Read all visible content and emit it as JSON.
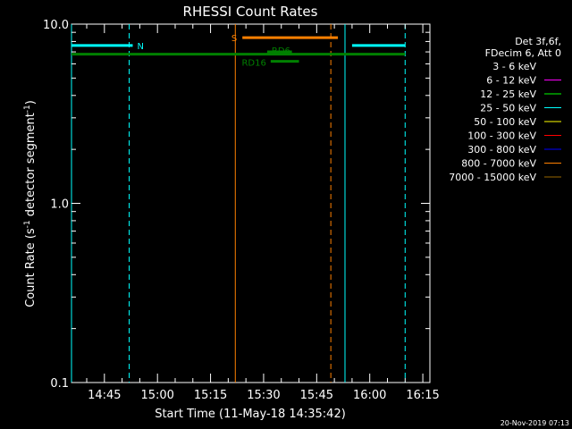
{
  "chart_data": {
    "type": "line",
    "title": "RHESSI Count Rates",
    "xlabel": "Start Time (11-May-18 14:35:42)",
    "ylabel_parts": [
      "Count Rate (s",
      "-1",
      " detector segment",
      "-1",
      ")"
    ],
    "y_scale": "log",
    "ylim": [
      0.1,
      10.0
    ],
    "yticks": [
      {
        "v": 0.1,
        "label": "0.1"
      },
      {
        "v": 1.0,
        "label": "1.0"
      },
      {
        "v": 10.0,
        "label": "10.0"
      }
    ],
    "xlim": [
      "14:35:42",
      "16:17:00"
    ],
    "xticks": [
      {
        "t": "14:45",
        "label": "14:45"
      },
      {
        "t": "15:00",
        "label": "15:00"
      },
      {
        "t": "15:15",
        "label": "15:15"
      },
      {
        "t": "15:30",
        "label": "15:30"
      },
      {
        "t": "15:45",
        "label": "15:45"
      },
      {
        "t": "16:00",
        "label": "16:00"
      },
      {
        "t": "16:15",
        "label": "16:15"
      }
    ],
    "legend_header": [
      "Det 3f,6f,",
      "FDecim 6, Att 0"
    ],
    "legend": [
      {
        "label": "3 - 6 keV",
        "color": "#000000"
      },
      {
        "label": "6 - 12 keV",
        "color": "#ff00ff"
      },
      {
        "label": "12 - 25 keV",
        "color": "#00ff00"
      },
      {
        "label": "25 - 50 keV",
        "color": "#00ffff"
      },
      {
        "label": "50 - 100 keV",
        "color": "#ffff00"
      },
      {
        "label": "100 - 300 keV",
        "color": "#ff0000"
      },
      {
        "label": "300 - 800 keV",
        "color": "#0000ff"
      },
      {
        "label": "800 - 7000 keV",
        "color": "#ff8000"
      },
      {
        "label": "7000 - 15000 keV",
        "color": "#996600"
      }
    ],
    "legend_placement": "right",
    "flag_bars": [
      {
        "label": "N",
        "color": "#00ffff",
        "segments": [
          [
            "14:35:42",
            "14:53:00"
          ],
          [
            "15:55:00",
            "16:10:00"
          ]
        ],
        "y": 7.6
      },
      {
        "label": "S",
        "color": "#ff8000",
        "segments": [
          [
            "15:24:00",
            "15:51:00"
          ]
        ],
        "y": 8.4
      },
      {
        "label": "RD6",
        "color": "#008000",
        "segments": [
          [
            "15:31:00",
            "15:38:00"
          ]
        ],
        "y": 7.0
      },
      {
        "label": "RD16",
        "color": "#008000",
        "segments": [
          [
            "15:32:00",
            "15:40:00"
          ]
        ],
        "y": 6.2
      },
      {
        "label": "",
        "color": "#008000",
        "segments": [
          [
            "14:35:42",
            "16:10:00"
          ]
        ],
        "y": 6.8
      }
    ],
    "vlines": [
      {
        "t": "14:35:42",
        "color": "#00ffff",
        "style": "solid"
      },
      {
        "t": "14:52:00",
        "color": "#00ffff",
        "style": "dashed"
      },
      {
        "t": "15:22:00",
        "color": "#ff8000",
        "style": "solid"
      },
      {
        "t": "15:49:00",
        "color": "#ff8000",
        "style": "dashed"
      },
      {
        "t": "15:53:00",
        "color": "#00ffff",
        "style": "solid"
      },
      {
        "t": "16:10:00",
        "color": "#00ffff",
        "style": "dashed"
      }
    ],
    "grid": false
  },
  "footer": {
    "timestamp": "20-Nov-2019 07:13"
  },
  "colors": {
    "background": "#000000",
    "foreground": "#ffffff"
  }
}
